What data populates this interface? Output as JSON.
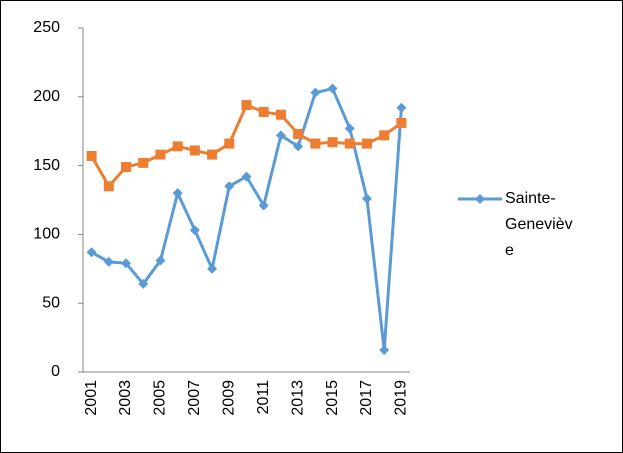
{
  "chart_data": {
    "type": "line",
    "categories": [
      "2001",
      null,
      "2003",
      null,
      "2005",
      null,
      "2007",
      null,
      "2009",
      null,
      "2011",
      null,
      "2013",
      null,
      "2015",
      null,
      "2017",
      null,
      "2019"
    ],
    "series": [
      {
        "name": "Sainte-Geneviève",
        "color": "#5b9bd5",
        "marker": "diamond",
        "values": [
          87,
          80,
          79,
          64,
          81,
          130,
          103,
          75,
          135,
          142,
          121,
          172,
          164,
          203,
          206,
          177,
          126,
          16,
          192
        ]
      },
      {
        "color": "#ed7d31",
        "marker": "square",
        "values": [
          157,
          135,
          149,
          152,
          158,
          164,
          161,
          158,
          166,
          194,
          189,
          187,
          173,
          166,
          167,
          166,
          166,
          172,
          181
        ]
      }
    ],
    "ylim": [
      0,
      250
    ],
    "yticks": [
      0,
      50,
      100,
      150,
      200,
      250
    ],
    "grid": false,
    "legend": "right"
  }
}
